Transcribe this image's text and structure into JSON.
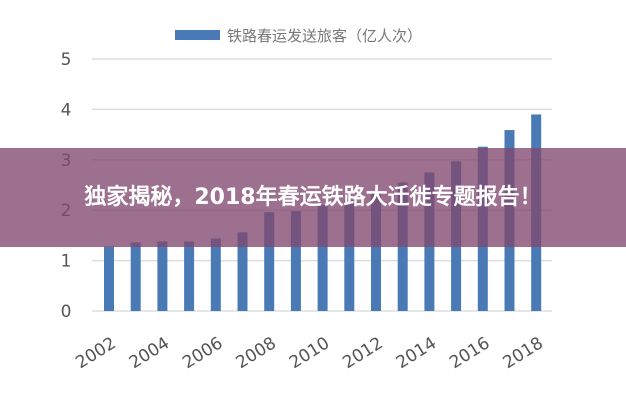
{
  "chart_data": {
    "type": "bar",
    "title": "",
    "legend": {
      "entries": [
        "铁路春运发送旅客（亿人次）"
      ],
      "placement": "top"
    },
    "categories": [
      "2002",
      "2003",
      "2004",
      "2005",
      "2006",
      "2007",
      "2008",
      "2009",
      "2010",
      "2011",
      "2012",
      "2013",
      "2014",
      "2015",
      "2016",
      "2017",
      "2018"
    ],
    "x_tick_labels": [
      "2002",
      "2004",
      "2006",
      "2008",
      "2010",
      "2012",
      "2014",
      "2016",
      "2018"
    ],
    "series": [
      {
        "name": "铁路春运发送旅客（亿人次）",
        "values": [
          1.28,
          1.36,
          1.38,
          1.38,
          1.44,
          1.56,
          1.96,
          1.98,
          2.1,
          2.2,
          2.35,
          2.55,
          2.75,
          2.97,
          3.26,
          3.59,
          3.9
        ]
      }
    ],
    "ylim": [
      0,
      5
    ],
    "y_ticks": [
      "0",
      "1",
      "2",
      "3",
      "4",
      "5"
    ],
    "grid": true,
    "bar_color": "#4a7ab5"
  },
  "overlay": {
    "title": "独家揭秘，2018年春运铁路大迁徙专题报告！",
    "color": "#80486e"
  }
}
